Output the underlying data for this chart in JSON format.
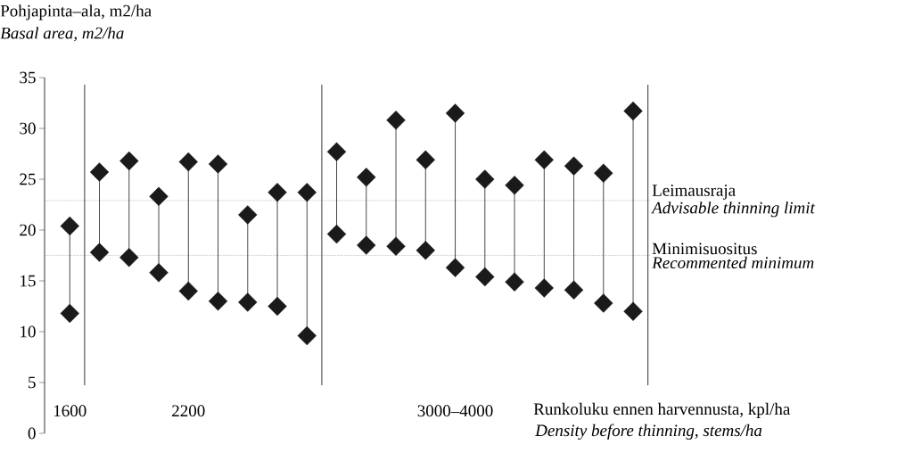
{
  "chart_data": {
    "type": "scatter",
    "ylabel": "Pohjapinta–ala, m2/ha",
    "xlabel": "Runkoluku ennen harvennusta, kpl/ha",
    "categories": [
      "1600",
      null,
      null,
      null,
      "2200",
      null,
      null,
      null,
      null,
      null,
      null,
      null,
      null,
      "3000–4000",
      null,
      null,
      null,
      null,
      null,
      null
    ],
    "series": [
      {
        "color": "#1a1a1a",
        "values": [
          20.4,
          25.7,
          26.8,
          23.3,
          26.7,
          26.5,
          21.5,
          23.7,
          23.7,
          27.7,
          25.2,
          30.8,
          26.9,
          31.5,
          25.0,
          24.4,
          26.9,
          26.3,
          25.6,
          31.7
        ]
      },
      {
        "color": "#1a1a1a",
        "values": [
          11.8,
          17.8,
          17.3,
          15.8,
          14.0,
          13.0,
          12.9,
          12.5,
          9.6,
          19.6,
          18.5,
          18.4,
          18.0,
          16.3,
          15.4,
          14.9,
          14.3,
          14.1,
          12.8,
          12.0
        ]
      }
    ],
    "marker": "diamond",
    "ylim": [
      0,
      35
    ],
    "yticks": [
      0,
      5,
      10,
      15,
      20,
      25,
      30,
      35
    ],
    "ref_lines": [
      {
        "axis": "y",
        "value": 22.9,
        "label": "Leimausraja",
        "line_style": "dotted"
      },
      {
        "axis": "y",
        "value": 17.5,
        "label": "Minimisuositus",
        "line_style": "dotted"
      }
    ],
    "annotations": [
      "Basal area, m2/ha",
      "Density before thinning, stems/ha",
      "Advisable thinning limit",
      "Recommented minimum"
    ]
  }
}
